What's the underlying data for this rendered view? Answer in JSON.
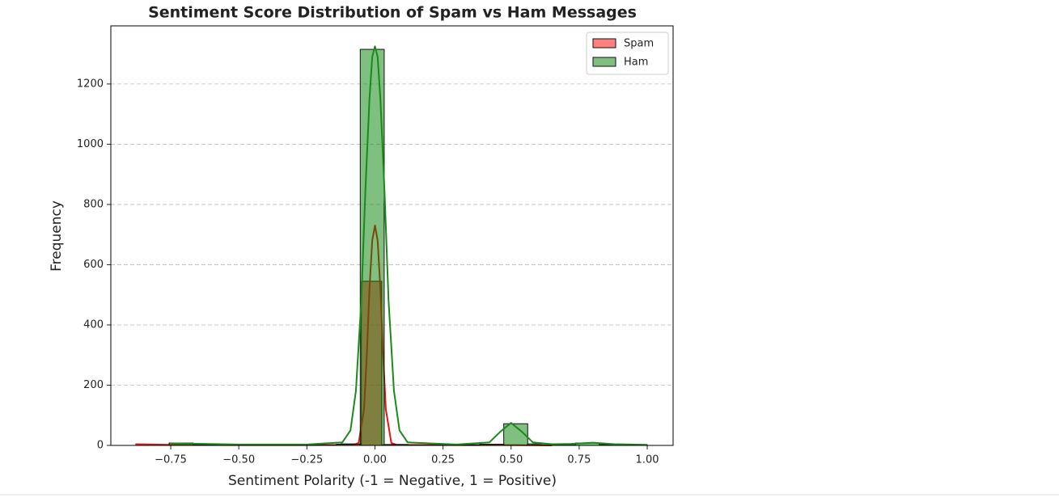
{
  "chart_data": {
    "type": "histogram",
    "title": "Sentiment Score Distribution of Spam vs Ham Messages",
    "xlabel": "Sentiment Polarity (-1 = Negative, 1 = Positive)",
    "ylabel": "Frequency",
    "xlim": [
      -0.97,
      1.095
    ],
    "ylim": [
      0,
      1393
    ],
    "xticks": [
      {
        "value": -0.75,
        "label": "−0.75"
      },
      {
        "value": -0.5,
        "label": "−0.50"
      },
      {
        "value": -0.25,
        "label": "−0.25"
      },
      {
        "value": 0,
        "label": "0.00"
      },
      {
        "value": 0.25,
        "label": "0.25"
      },
      {
        "value": 0.5,
        "label": "0.50"
      },
      {
        "value": 0.75,
        "label": "0.75"
      },
      {
        "value": 1,
        "label": "1.00"
      }
    ],
    "yticks": [
      0,
      200,
      400,
      600,
      800,
      1000,
      1200
    ],
    "grid": true,
    "legend": "upper right",
    "series": [
      {
        "name": "Spam",
        "color": "#ff0000",
        "line_color": "#ee1111",
        "bins": [
          -0.875,
          -0.8,
          -0.725,
          -0.65,
          -0.575,
          -0.5,
          -0.425,
          -0.35,
          -0.275,
          -0.2,
          -0.125,
          -0.05,
          0.025,
          0.1,
          0.175,
          0.25,
          0.325,
          0.4,
          0.475,
          0.55,
          0.625
        ],
        "values": [
          3,
          1,
          1,
          0,
          1,
          0,
          1,
          1,
          1,
          2,
          5,
          545,
          2,
          1,
          0,
          1,
          0,
          0,
          0,
          0
        ],
        "kde_x": [
          -0.88,
          -0.75,
          -0.5,
          -0.25,
          -0.08,
          -0.06,
          -0.04,
          -0.03,
          -0.02,
          -0.01,
          0,
          0.01,
          0.02,
          0.03,
          0.04,
          0.06,
          0.08,
          0.3,
          0.5,
          0.65
        ],
        "kde_values": [
          4,
          2,
          1,
          1,
          2,
          8,
          120,
          300,
          520,
          680,
          730,
          680,
          520,
          300,
          120,
          8,
          2,
          1,
          1,
          0
        ]
      },
      {
        "name": "Ham",
        "color": "#008000",
        "line_color": "#1a8a1a",
        "bins": [
          -0.756,
          -0.668,
          -0.58,
          -0.493,
          -0.405,
          -0.317,
          -0.229,
          -0.141,
          -0.054,
          0.034,
          0.122,
          0.21,
          0.298,
          0.385,
          0.473,
          0.561,
          0.649,
          0.737,
          0.824,
          0.912,
          1.0
        ],
        "values": [
          8,
          2,
          1,
          1,
          1,
          2,
          1,
          4,
          1315,
          3,
          1,
          1,
          2,
          4,
          72,
          5,
          3,
          8,
          3,
          2
        ],
        "kde_x": [
          -0.75,
          -0.5,
          -0.25,
          -0.12,
          -0.09,
          -0.07,
          -0.05,
          -0.035,
          -0.02,
          -0.01,
          0,
          0.01,
          0.02,
          0.035,
          0.05,
          0.07,
          0.09,
          0.12,
          0.3,
          0.42,
          0.46,
          0.5,
          0.54,
          0.58,
          0.65,
          0.72,
          0.8,
          0.88,
          1.0
        ],
        "kde_values": [
          7,
          3,
          3,
          10,
          50,
          180,
          480,
          850,
          1150,
          1290,
          1325,
          1290,
          1150,
          850,
          480,
          180,
          50,
          10,
          3,
          10,
          45,
          75,
          45,
          10,
          4,
          5,
          9,
          4,
          2
        ]
      }
    ]
  }
}
